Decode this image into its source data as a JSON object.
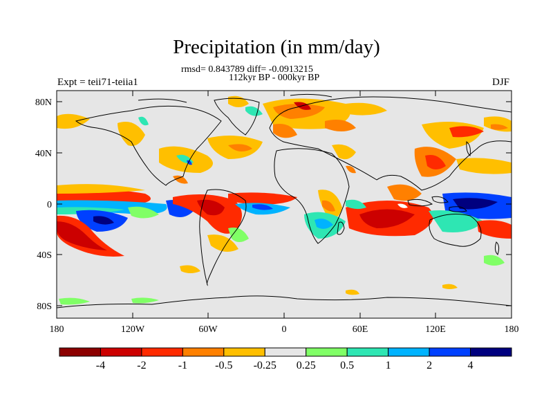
{
  "title": "Precipitation (in mm/day)",
  "stats_line": "rmsd= 0.843789 diff= -0.0913215",
  "period": "112kyr BP - 000kyr BP",
  "experiment": "Expt = teii71-teiia1",
  "season": "DJF",
  "map": {
    "land_color": "#e6e6e6",
    "lat_ticks": [
      "80N",
      "40N",
      "0",
      "40S",
      "80S"
    ],
    "lon_ticks": [
      "180",
      "120W",
      "60W",
      "0",
      "60E",
      "120E",
      "180"
    ]
  },
  "colorbar": {
    "colors": [
      "#8c0000",
      "#cc0000",
      "#ff2a00",
      "#ff8000",
      "#ffbf00",
      "#e6e6e6",
      "#80ff66",
      "#2ee6b3",
      "#00b3ff",
      "#0040ff",
      "#00007f"
    ],
    "labels": [
      "-4",
      "-2",
      "-1",
      "-0.5",
      "-0.25",
      "0.25",
      "0.5",
      "1",
      "2",
      "4"
    ]
  }
}
